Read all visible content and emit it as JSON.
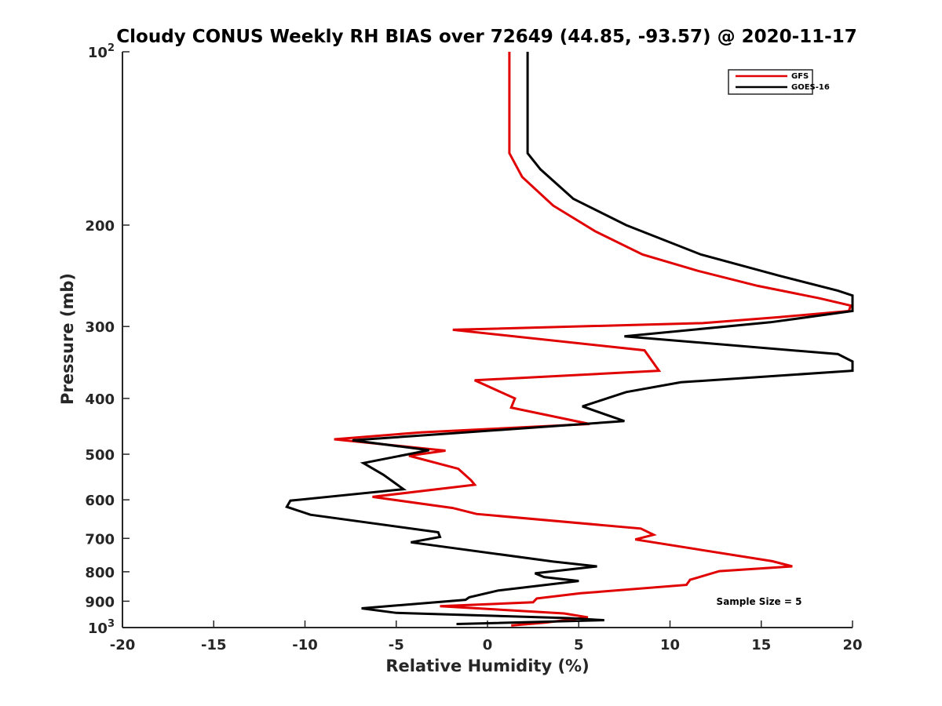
{
  "chart_data": {
    "type": "line",
    "title": "Cloudy CONUS Weekly RH BIAS over 72649 (44.85, -93.57) @ 2020-11-17",
    "xlabel": "Relative Humidity (%)",
    "ylabel": "Pressure (mb)",
    "xlim": [
      -20,
      20
    ],
    "ylim": [
      100,
      1000
    ],
    "yscale": "log",
    "y_reversed": true,
    "grid": false,
    "legend_position": "top-right",
    "x_ticks": [
      "-20",
      "-15",
      "-10",
      "-5",
      "0",
      "5",
      "10",
      "15",
      "20"
    ],
    "y_ticks": [
      {
        "value": 100,
        "base": "10",
        "exp": "2"
      },
      {
        "value": 200,
        "label": "200"
      },
      {
        "value": 300,
        "label": "300"
      },
      {
        "value": 400,
        "label": "400"
      },
      {
        "value": 500,
        "label": "500"
      },
      {
        "value": 600,
        "label": "600"
      },
      {
        "value": 700,
        "label": "700"
      },
      {
        "value": 800,
        "label": "800"
      },
      {
        "value": 900,
        "label": "900"
      },
      {
        "value": 1000,
        "base": "10",
        "exp": "3"
      }
    ],
    "annotation": "Sample Size = 5",
    "series": [
      {
        "name": "GFS",
        "color": "#e00000",
        "points": [
          [
            1.2,
            100
          ],
          [
            1.2,
            125
          ],
          [
            1.2,
            150
          ],
          [
            1.9,
            165
          ],
          [
            3.6,
            185
          ],
          [
            5.9,
            205
          ],
          [
            8.5,
            225
          ],
          [
            11.5,
            240
          ],
          [
            14.8,
            255
          ],
          [
            18.2,
            268
          ],
          [
            19.9,
            276
          ],
          [
            19.8,
            282
          ],
          [
            16.0,
            289
          ],
          [
            11.8,
            296
          ],
          [
            -1.9,
            304
          ],
          [
            8.6,
            330
          ],
          [
            9.4,
            358
          ],
          [
            -0.7,
            372
          ],
          [
            1.5,
            400
          ],
          [
            1.3,
            415
          ],
          [
            5.6,
            443
          ],
          [
            -3.6,
            458
          ],
          [
            -8.4,
            471
          ],
          [
            -2.3,
            493
          ],
          [
            -4.3,
            503
          ],
          [
            -1.6,
            530
          ],
          [
            -0.9,
            555
          ],
          [
            -0.7,
            565
          ],
          [
            -6.3,
            593
          ],
          [
            -1.9,
            620
          ],
          [
            -0.6,
            635
          ],
          [
            8.4,
            673
          ],
          [
            9.1,
            690
          ],
          [
            8.1,
            703
          ],
          [
            15.6,
            767
          ],
          [
            16.7,
            783
          ],
          [
            12.7,
            798
          ],
          [
            11.1,
            826
          ],
          [
            10.9,
            843
          ],
          [
            5.1,
            872
          ],
          [
            2.7,
            890
          ],
          [
            2.5,
            904
          ],
          [
            -2.6,
            918
          ],
          [
            4.2,
            945
          ],
          [
            5.5,
            960
          ],
          [
            3.2,
            980
          ],
          [
            1.3,
            992
          ]
        ]
      },
      {
        "name": "GOES-16",
        "color": "#000000",
        "points": [
          [
            2.2,
            100
          ],
          [
            2.2,
            125
          ],
          [
            2.2,
            150
          ],
          [
            2.9,
            160
          ],
          [
            4.7,
            180
          ],
          [
            7.6,
            200
          ],
          [
            11.7,
            225
          ],
          [
            16.0,
            245
          ],
          [
            19.2,
            260
          ],
          [
            20.0,
            265
          ],
          [
            20.0,
            282
          ],
          [
            15.5,
            295
          ],
          [
            7.5,
            312
          ],
          [
            19.2,
            335
          ],
          [
            20.0,
            345
          ],
          [
            20.0,
            358
          ],
          [
            10.6,
            375
          ],
          [
            7.6,
            390
          ],
          [
            5.2,
            413
          ],
          [
            7.5,
            438
          ],
          [
            -2.0,
            460
          ],
          [
            -7.4,
            473
          ],
          [
            -3.2,
            492
          ],
          [
            -6.8,
            518
          ],
          [
            -5.7,
            543
          ],
          [
            -4.6,
            575
          ],
          [
            -10.8,
            602
          ],
          [
            -11.0,
            617
          ],
          [
            -9.7,
            637
          ],
          [
            -2.7,
            683
          ],
          [
            -2.6,
            696
          ],
          [
            -4.2,
            711
          ],
          [
            3.6,
            768
          ],
          [
            6.0,
            783
          ],
          [
            2.6,
            805
          ],
          [
            3.1,
            817
          ],
          [
            5.0,
            830
          ],
          [
            0.6,
            862
          ],
          [
            -1.0,
            886
          ],
          [
            -1.2,
            895
          ],
          [
            -6.9,
            926
          ],
          [
            -5.0,
            943
          ],
          [
            4.5,
            963
          ],
          [
            6.4,
            971
          ],
          [
            -1.7,
            986
          ]
        ]
      }
    ]
  }
}
